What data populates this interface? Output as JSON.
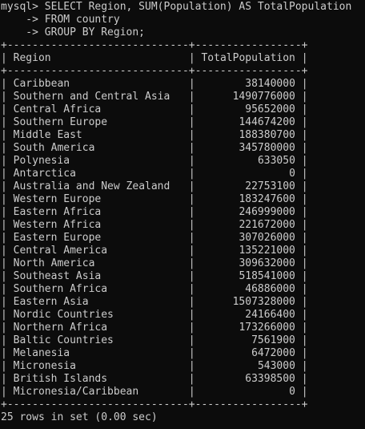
{
  "query": {
    "line1": "mysql> SELECT Region, SUM(Population) AS TotalPopulation",
    "line2": "    -> FROM country",
    "line3": "    -> GROUP BY Region;"
  },
  "table": {
    "border": "+-----------------------------+-----------------+",
    "columns": [
      "Region",
      "TotalPopulation"
    ],
    "rows": [
      {
        "region": "Caribbean",
        "total": "38140000"
      },
      {
        "region": "Southern and Central Asia",
        "total": "1490776000"
      },
      {
        "region": "Central Africa",
        "total": "95652000"
      },
      {
        "region": "Southern Europe",
        "total": "144674200"
      },
      {
        "region": "Middle East",
        "total": "188380700"
      },
      {
        "region": "South America",
        "total": "345780000"
      },
      {
        "region": "Polynesia",
        "total": "633050"
      },
      {
        "region": "Antarctica",
        "total": "0"
      },
      {
        "region": "Australia and New Zealand",
        "total": "22753100"
      },
      {
        "region": "Western Europe",
        "total": "183247600"
      },
      {
        "region": "Eastern Africa",
        "total": "246999000"
      },
      {
        "region": "Western Africa",
        "total": "221672000"
      },
      {
        "region": "Eastern Europe",
        "total": "307026000"
      },
      {
        "region": "Central America",
        "total": "135221000"
      },
      {
        "region": "North America",
        "total": "309632000"
      },
      {
        "region": "Southeast Asia",
        "total": "518541000"
      },
      {
        "region": "Southern Africa",
        "total": "46886000"
      },
      {
        "region": "Eastern Asia",
        "total": "1507328000"
      },
      {
        "region": "Nordic Countries",
        "total": "24166400"
      },
      {
        "region": "Northern Africa",
        "total": "173266000"
      },
      {
        "region": "Baltic Countries",
        "total": "7561900"
      },
      {
        "region": "Melanesia",
        "total": "6472000"
      },
      {
        "region": "Micronesia",
        "total": "543000"
      },
      {
        "region": "British Islands",
        "total": "63398500"
      },
      {
        "region": "Micronesia/Caribbean",
        "total": "0"
      }
    ]
  },
  "footer": "25 rows in set (0.00 sec)",
  "colors": {
    "background": "#0c0c0c",
    "text": "#cccccc"
  }
}
